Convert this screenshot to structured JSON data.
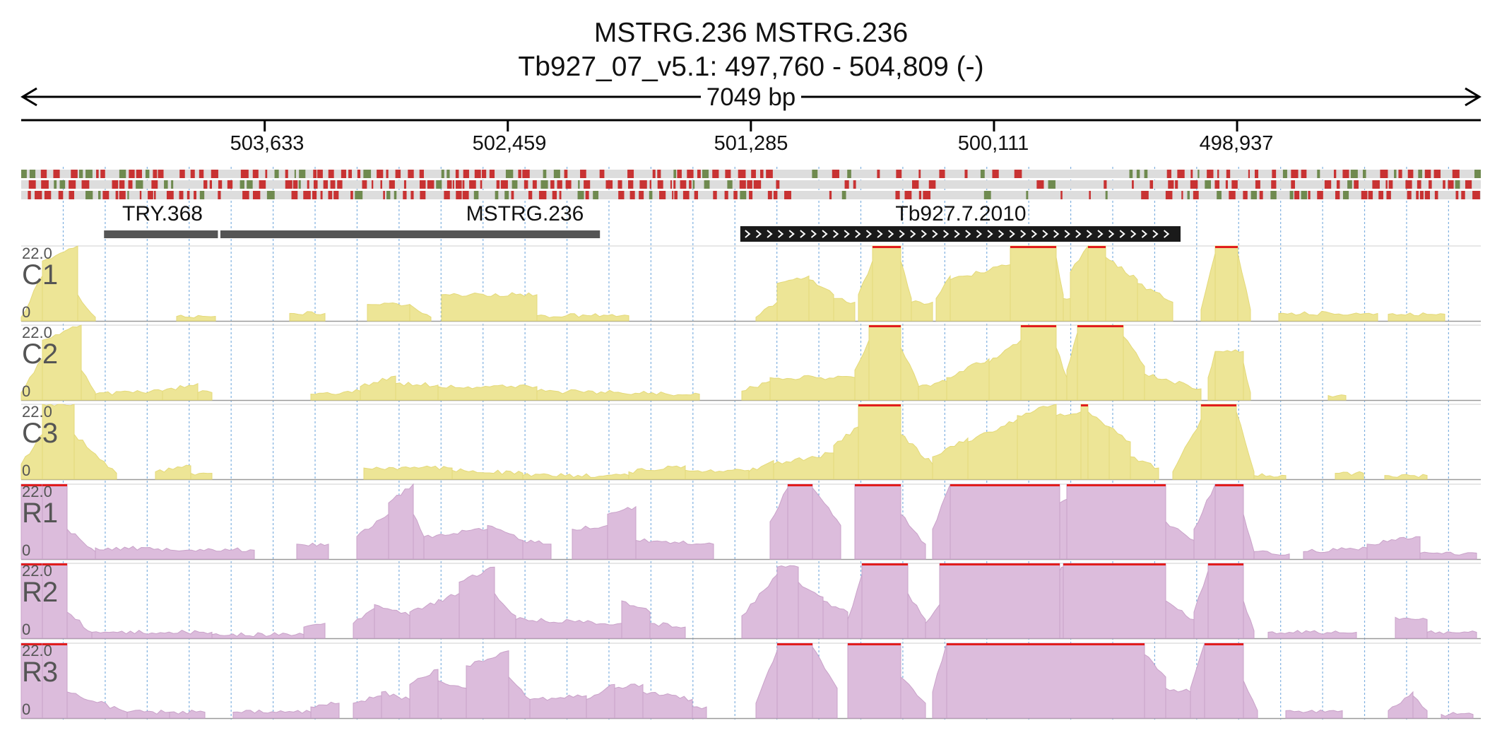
{
  "title": {
    "line1": "MSTRG.236  MSTRG.236",
    "line2": "Tb927_07_v5.1: 497,760 - 504,809 (-)"
  },
  "span": {
    "label": "7049 bp"
  },
  "region": {
    "start": 497760,
    "end": 504809,
    "strand": "-"
  },
  "ticks": [
    {
      "label": "503,633",
      "value": 503633
    },
    {
      "label": "502,459",
      "value": 502459
    },
    {
      "label": "501,285",
      "value": 501285
    },
    {
      "label": "500,111",
      "value": 500111
    },
    {
      "label": "498,937",
      "value": 498937
    }
  ],
  "genes": [
    {
      "name": "TRY.368",
      "start": 504409,
      "end": 503859,
      "style": "gray"
    },
    {
      "name": "MSTRG.236",
      "start": 503847,
      "end": 502014,
      "style": "gray"
    },
    {
      "name": "Tb927.7.2010",
      "start": 501285,
      "end": 499210,
      "style": "black-arrows"
    }
  ],
  "tracks": [
    {
      "name": "C1",
      "max": "22.0",
      "min": "0",
      "kind": "C"
    },
    {
      "name": "C2",
      "max": "22.0",
      "min": "0",
      "kind": "C"
    },
    {
      "name": "C3",
      "max": "22.0",
      "min": "0",
      "kind": "C"
    },
    {
      "name": "R1",
      "max": "22.0",
      "min": "0",
      "kind": "R"
    },
    {
      "name": "R2",
      "max": "22.0",
      "min": "0",
      "kind": "R"
    },
    {
      "name": "R3",
      "max": "22.0",
      "min": "0",
      "kind": "R"
    }
  ],
  "colors": {
    "c_fill": "#ede596",
    "c_stroke": "#e4d979",
    "r_fill": "#dcbcdc",
    "r_stroke": "#c9a2c9",
    "clip": "#e11d1d",
    "grid": "#7fb0df",
    "gene_gray": "#555555",
    "gene_black": "#1a1a1a",
    "mm_red": "#c83232",
    "mm_green": "#6f8a4f",
    "mm_bg": "#dddddd"
  }
}
